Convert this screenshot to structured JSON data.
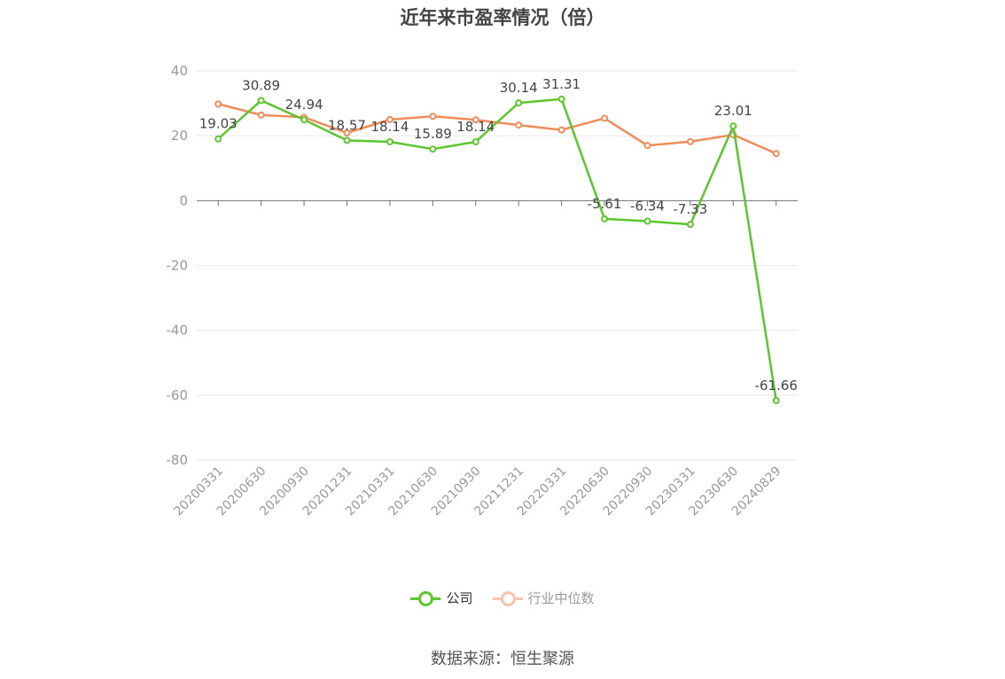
{
  "chart_data": {
    "type": "line",
    "title": "近年来市盈率情况（倍）",
    "categories": [
      "20200331",
      "20200630",
      "20200930",
      "20201231",
      "20210331",
      "20210630",
      "20210930",
      "20211231",
      "20220331",
      "20220630",
      "20220930",
      "20230331",
      "20230630",
      "20240829"
    ],
    "ylim": [
      -80,
      40
    ],
    "yticks": [
      40,
      20,
      0,
      -20,
      -40,
      -60,
      -80
    ],
    "grid": true,
    "legend_position": "bottom",
    "series": [
      {
        "name": "公司",
        "color": "#5cc72c",
        "values": [
          19.03,
          30.89,
          24.94,
          18.57,
          18.14,
          15.89,
          18.14,
          30.14,
          31.31,
          -5.61,
          -6.34,
          -7.33,
          23.01,
          -61.66
        ],
        "labels": [
          "19.03",
          "30.89",
          "24.94",
          "18.57",
          "18.14",
          "15.89",
          "18.14",
          "30.14",
          "31.31",
          "-5.61",
          "-6.34",
          "-7.33",
          "23.01",
          "-61.66"
        ]
      },
      {
        "name": "行业中位数",
        "color": "#f08c5a",
        "values": [
          29.8,
          26.4,
          25.7,
          20.9,
          25.0,
          26.0,
          24.9,
          23.3,
          21.8,
          25.4,
          17.0,
          18.2,
          20.3,
          14.5
        ]
      }
    ]
  },
  "source": "数据来源：恒生聚源"
}
